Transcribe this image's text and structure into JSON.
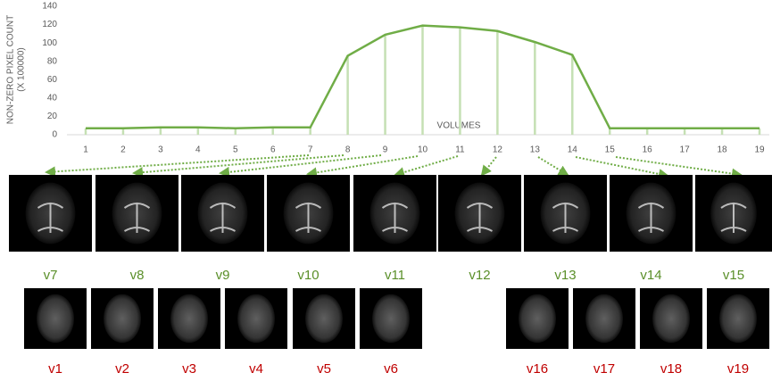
{
  "chart_data": {
    "type": "line",
    "y_label": [
      "NON-ZERO  PIXEL COUNT",
      "(X 100000)"
    ],
    "x_label": "VOLUMES",
    "categories": [
      "1",
      "2",
      "3",
      "4",
      "5",
      "6",
      "7",
      "8",
      "9",
      "10",
      "11",
      "12",
      "13",
      "14",
      "15",
      "16",
      "17",
      "18",
      "19"
    ],
    "values": [
      7,
      7,
      8,
      8,
      7,
      8,
      8,
      86,
      109,
      119,
      117,
      113,
      101,
      87,
      7,
      7,
      7,
      7,
      7
    ],
    "color": "#70ad47",
    "drop_line_color": "#c5e0b4",
    "ylim": [
      0,
      140
    ],
    "yticks": [
      0,
      20,
      40,
      60,
      80,
      100,
      120,
      140
    ]
  },
  "images": {
    "top": [
      "v7",
      "v8",
      "v9",
      "v10",
      "v11",
      "v12",
      "v13",
      "v14",
      "v15"
    ],
    "bottom": [
      "v1",
      "v2",
      "v3",
      "v4",
      "v5",
      "v6",
      "v16",
      "v17",
      "v18",
      "v19"
    ]
  }
}
